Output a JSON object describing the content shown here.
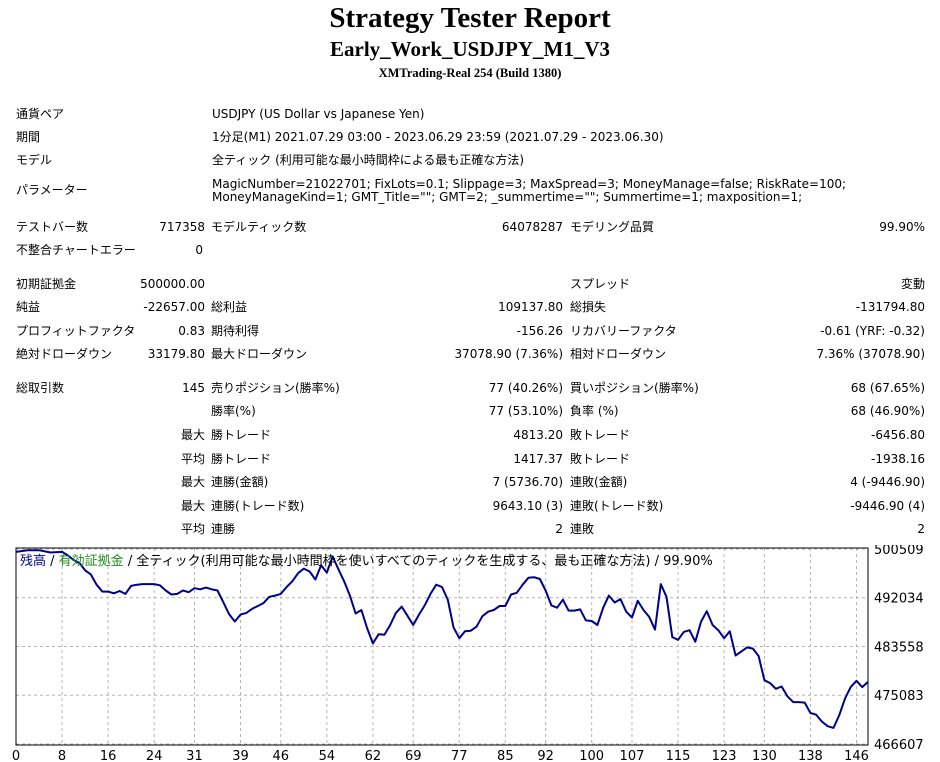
{
  "report": {
    "title": "Strategy Tester Report",
    "ea_name": "Early_Work_USDJPY_M1_V3",
    "server": "XMTrading-Real 254 (Build 1380)"
  },
  "info": {
    "symbol_label": "通貨ペア",
    "symbol_value": "USDJPY (US Dollar vs Japanese Yen)",
    "period_label": "期間",
    "period_value": "1分足(M1) 2021.07.29 03:00 - 2023.06.29 23:59 (2021.07.29 - 2023.06.30)",
    "model_label": "モデル",
    "model_value": "全ティック (利用可能な最小時間枠による最も正確な方法)",
    "params_label": "パラメーター",
    "params_value": "MagicNumber=21022701; FixLots=0.1; Slippage=3; MaxSpread=3; MoneyManage=false; RiskRate=100; MoneyManageKind=1; GMT_Title=\"\"; GMT=2; _summertime=\"\"; Summertime=1; maxposition=1;"
  },
  "stats": {
    "bars_label": "テストバー数",
    "bars": "717358",
    "ticks_label": "モデルティック数",
    "ticks": "64078287",
    "quality_label": "モデリング品質",
    "quality": "99.90%",
    "mismatch_label": "不整合チャートエラー",
    "mismatch": "0",
    "deposit_label": "初期証拠金",
    "deposit": "500000.00",
    "spread_label": "スプレッド",
    "spread": "変動",
    "net_label": "純益",
    "net": "-22657.00",
    "gross_profit_label": "総利益",
    "gross_profit": "109137.80",
    "gross_loss_label": "総損失",
    "gross_loss": "-131794.80",
    "pf_label": "プロフィットファクタ",
    "pf": "0.83",
    "expected_label": "期待利得",
    "expected": "-156.26",
    "recovery_label": "リカバリーファクタ",
    "recovery": "-0.61 (YRF: -0.32)",
    "abs_dd_label": "絶対ドローダウン",
    "abs_dd": "33179.80",
    "max_dd_label": "最大ドローダウン",
    "max_dd": "37078.90 (7.36%)",
    "rel_dd_label": "相対ドローダウン",
    "rel_dd": "7.36% (37078.90)",
    "total_trades_label": "総取引数",
    "total_trades": "145",
    "short_label": "売りポジション(勝率%)",
    "short": "77 (40.26%)",
    "long_label": "買いポジション(勝率%)",
    "long": "68 (67.65%)",
    "winrate_label": "勝率(%)",
    "winrate": "77 (53.10%)",
    "lossrate_label": "負率 (%)",
    "lossrate": "68 (46.90%)",
    "max_label": "最大",
    "avg_label": "平均",
    "win_trade_label": "勝トレード",
    "loss_trade_label": "敗トレード",
    "max_win": "4813.20",
    "max_loss": "-6456.80",
    "avg_win": "1417.37",
    "avg_loss": "-1938.16",
    "cons_win_amt_label": "連勝(金額)",
    "cons_win_amt": "7 (5736.70)",
    "cons_loss_amt_label": "連敗(金額)",
    "cons_loss_amt": "4 (-9446.90)",
    "cons_win_trd_label": "連勝(トレード数)",
    "cons_win_trd": "9643.10 (3)",
    "cons_loss_trd_label": "連敗(トレード数)",
    "cons_loss_trd": "-9446.90 (4)",
    "avg_cons_win_label": "連勝",
    "avg_cons_win": "2",
    "avg_cons_loss_label": "連敗",
    "avg_cons_loss": "2"
  },
  "chart_legend": {
    "balance": "残高",
    "sep1": " / ",
    "equity": "有効証拠金",
    "rest": " / 全ティック(利用可能な最小時間枠を使いすべてのティックを生成する、最も正確な方法) / 99.90%"
  },
  "chart_data": {
    "type": "line",
    "x_ticks": [
      0,
      8,
      16,
      24,
      31,
      39,
      46,
      54,
      62,
      69,
      77,
      85,
      92,
      100,
      107,
      115,
      123,
      130,
      138,
      146
    ],
    "y_ticks": [
      500509,
      492034,
      483558,
      475083,
      466607
    ],
    "ylim": [
      466607,
      500509
    ],
    "xlim": [
      0,
      148
    ],
    "colors": {
      "balance": "#00008b",
      "grid": "#b4b4b4",
      "border": "#000000"
    },
    "balance": [
      [
        0,
        500000
      ],
      [
        2,
        500300
      ],
      [
        4,
        500300
      ],
      [
        6,
        499900
      ],
      [
        8,
        500000
      ],
      [
        9,
        499400
      ],
      [
        10,
        498600
      ],
      [
        11,
        498100
      ],
      [
        12,
        496800
      ],
      [
        13,
        496100
      ],
      [
        14,
        494300
      ],
      [
        15,
        493100
      ],
      [
        16,
        493100
      ],
      [
        17,
        492800
      ],
      [
        18,
        493200
      ],
      [
        19,
        492700
      ],
      [
        20,
        494100
      ],
      [
        21,
        494300
      ],
      [
        22,
        494400
      ],
      [
        24,
        494400
      ],
      [
        25,
        494200
      ],
      [
        26,
        493300
      ],
      [
        27,
        492600
      ],
      [
        28,
        492700
      ],
      [
        29,
        493300
      ],
      [
        30,
        493000
      ],
      [
        31,
        493700
      ],
      [
        32,
        493500
      ],
      [
        33,
        493800
      ],
      [
        34,
        493500
      ],
      [
        35,
        493300
      ],
      [
        36,
        491300
      ],
      [
        37,
        489200
      ],
      [
        38,
        487900
      ],
      [
        39,
        489100
      ],
      [
        40,
        489400
      ],
      [
        41,
        490100
      ],
      [
        42,
        490600
      ],
      [
        43,
        491100
      ],
      [
        44,
        492200
      ],
      [
        45,
        492400
      ],
      [
        46,
        492700
      ],
      [
        47,
        493900
      ],
      [
        48,
        494900
      ],
      [
        49,
        496300
      ],
      [
        50,
        497100
      ],
      [
        51,
        496600
      ],
      [
        52,
        495200
      ],
      [
        53,
        497700
      ],
      [
        54,
        496400
      ],
      [
        55,
        499200
      ],
      [
        56,
        497000
      ],
      [
        57,
        494900
      ],
      [
        58,
        492400
      ],
      [
        59,
        489300
      ],
      [
        60,
        489900
      ],
      [
        61,
        486700
      ],
      [
        62,
        484100
      ],
      [
        63,
        485700
      ],
      [
        64,
        485600
      ],
      [
        65,
        487300
      ],
      [
        66,
        489400
      ],
      [
        67,
        490500
      ],
      [
        68,
        488900
      ],
      [
        69,
        487300
      ],
      [
        70,
        489100
      ],
      [
        71,
        490700
      ],
      [
        72,
        492700
      ],
      [
        73,
        494300
      ],
      [
        74,
        493900
      ],
      [
        75,
        491700
      ],
      [
        76,
        486900
      ],
      [
        77,
        485000
      ],
      [
        78,
        486200
      ],
      [
        79,
        486300
      ],
      [
        80,
        487000
      ],
      [
        81,
        488800
      ],
      [
        82,
        489600
      ],
      [
        83,
        489900
      ],
      [
        84,
        490600
      ],
      [
        85,
        490600
      ],
      [
        86,
        492600
      ],
      [
        87,
        492900
      ],
      [
        88,
        494300
      ],
      [
        89,
        495500
      ],
      [
        90,
        495600
      ],
      [
        91,
        495300
      ],
      [
        92,
        493300
      ],
      [
        93,
        490700
      ],
      [
        94,
        490300
      ],
      [
        95,
        491700
      ],
      [
        96,
        489800
      ],
      [
        97,
        489800
      ],
      [
        98,
        490000
      ],
      [
        99,
        488100
      ],
      [
        100,
        488000
      ],
      [
        101,
        487300
      ],
      [
        102,
        490300
      ],
      [
        103,
        492400
      ],
      [
        104,
        491200
      ],
      [
        105,
        491800
      ],
      [
        106,
        489600
      ],
      [
        107,
        488600
      ],
      [
        108,
        491500
      ],
      [
        109,
        489900
      ],
      [
        110,
        488700
      ],
      [
        111,
        486500
      ],
      [
        112,
        494400
      ],
      [
        113,
        492200
      ],
      [
        114,
        485200
      ],
      [
        115,
        484700
      ],
      [
        116,
        486100
      ],
      [
        117,
        486400
      ],
      [
        118,
        484400
      ],
      [
        119,
        487900
      ],
      [
        120,
        489700
      ],
      [
        121,
        487300
      ],
      [
        122,
        486400
      ],
      [
        123,
        485000
      ],
      [
        124,
        486200
      ],
      [
        125,
        482000
      ],
      [
        126,
        482700
      ],
      [
        127,
        483400
      ],
      [
        128,
        483200
      ],
      [
        129,
        481900
      ],
      [
        130,
        477700
      ],
      [
        131,
        477200
      ],
      [
        132,
        476200
      ],
      [
        133,
        476600
      ],
      [
        134,
        474900
      ],
      [
        135,
        473900
      ],
      [
        136,
        473900
      ],
      [
        137,
        473800
      ],
      [
        138,
        472000
      ],
      [
        139,
        471700
      ],
      [
        140,
        470500
      ],
      [
        141,
        469700
      ],
      [
        142,
        469400
      ],
      [
        143,
        471600
      ],
      [
        144,
        474500
      ],
      [
        145,
        476500
      ],
      [
        146,
        477600
      ],
      [
        147,
        476500
      ],
      [
        148,
        477400
      ]
    ]
  }
}
